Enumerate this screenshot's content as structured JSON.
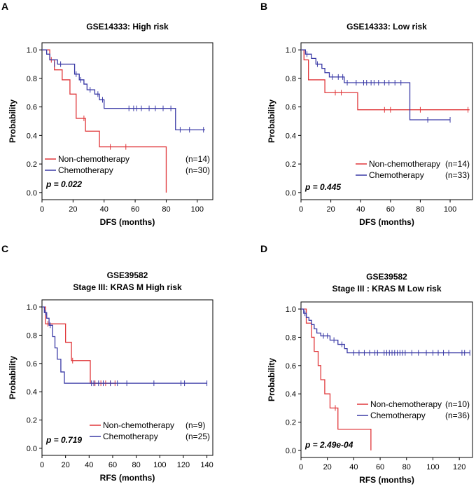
{
  "colors": {
    "non_chemo": "#e0373a",
    "chemo": "#3a3aa6"
  },
  "chart_data": [
    {
      "type": "line",
      "panel_label": "A",
      "title": "GSE14333: High risk",
      "title2": "",
      "xlabel": "DFS (months)",
      "ylabel": "Probability",
      "xticks": [
        0,
        20,
        40,
        60,
        80,
        100
      ],
      "yticks": [
        0.0,
        0.2,
        0.4,
        0.6,
        0.8,
        1.0
      ],
      "xlim": [
        0,
        110
      ],
      "ylim": [
        -0.05,
        1.05
      ],
      "p_value": "p = 0.022",
      "series": [
        {
          "name": "Non-chemotherapy",
          "n": "(n=14)",
          "color": "non_chemo",
          "steps": [
            [
              0,
              1.0
            ],
            [
              5,
              0.93
            ],
            [
              8,
              0.86
            ],
            [
              13,
              0.79
            ],
            [
              18,
              0.69
            ],
            [
              22,
              0.52
            ],
            [
              28,
              0.43
            ],
            [
              37,
              0.32
            ],
            [
              80,
              0.0
            ]
          ],
          "censor": [
            [
              6,
              0.93
            ],
            [
              27,
              0.52
            ],
            [
              44,
              0.32
            ],
            [
              54,
              0.32
            ]
          ],
          "end": 80
        },
        {
          "name": "Chemotherapy",
          "n": "(n=30)",
          "color": "chemo",
          "steps": [
            [
              0,
              1.0
            ],
            [
              3,
              0.97
            ],
            [
              5,
              0.93
            ],
            [
              10,
              0.9
            ],
            [
              21,
              0.83
            ],
            [
              24,
              0.79
            ],
            [
              27,
              0.76
            ],
            [
              29,
              0.72
            ],
            [
              34,
              0.69
            ],
            [
              37,
              0.65
            ],
            [
              40,
              0.59
            ],
            [
              86,
              0.44
            ]
          ],
          "censor": [
            [
              8,
              0.9
            ],
            [
              12,
              0.9
            ],
            [
              22,
              0.83
            ],
            [
              25,
              0.79
            ],
            [
              31,
              0.72
            ],
            [
              36,
              0.69
            ],
            [
              39,
              0.65
            ],
            [
              56,
              0.59
            ],
            [
              59,
              0.59
            ],
            [
              61,
              0.59
            ],
            [
              64,
              0.59
            ],
            [
              69,
              0.59
            ],
            [
              73,
              0.59
            ],
            [
              78,
              0.59
            ],
            [
              83,
              0.59
            ],
            [
              89,
              0.44
            ],
            [
              95,
              0.44
            ],
            [
              104,
              0.44
            ]
          ],
          "end": 105
        }
      ]
    },
    {
      "type": "line",
      "panel_label": "B",
      "title": "GSE14333: Low risk",
      "title2": "",
      "xlabel": "DFS (months)",
      "ylabel": "Probability",
      "xticks": [
        0,
        20,
        40,
        60,
        80,
        100
      ],
      "yticks": [
        0.0,
        0.2,
        0.4,
        0.6,
        0.8,
        1.0
      ],
      "xlim": [
        0,
        115
      ],
      "ylim": [
        -0.05,
        1.05
      ],
      "p_value": "p = 0.445",
      "series": [
        {
          "name": "Non-chemotherapy",
          "n": "(n=14)",
          "color": "non_chemo",
          "steps": [
            [
              0,
              1.0
            ],
            [
              2,
              0.93
            ],
            [
              5,
              0.79
            ],
            [
              16,
              0.7
            ],
            [
              38,
              0.58
            ]
          ],
          "censor": [
            [
              23,
              0.7
            ],
            [
              27,
              0.7
            ],
            [
              56,
              0.58
            ],
            [
              60,
              0.58
            ],
            [
              80,
              0.58
            ],
            [
              112,
              0.58
            ]
          ],
          "end": 113
        },
        {
          "name": "Chemotherapy",
          "n": "(n=33)",
          "color": "chemo",
          "steps": [
            [
              0,
              1.0
            ],
            [
              3,
              0.97
            ],
            [
              7,
              0.94
            ],
            [
              10,
              0.9
            ],
            [
              14,
              0.87
            ],
            [
              16,
              0.84
            ],
            [
              19,
              0.81
            ],
            [
              29,
              0.77
            ],
            [
              73,
              0.51
            ]
          ],
          "censor": [
            [
              4,
              0.97
            ],
            [
              11,
              0.9
            ],
            [
              21,
              0.81
            ],
            [
              25,
              0.81
            ],
            [
              28,
              0.81
            ],
            [
              31,
              0.77
            ],
            [
              37,
              0.77
            ],
            [
              42,
              0.77
            ],
            [
              44,
              0.77
            ],
            [
              47,
              0.77
            ],
            [
              49,
              0.77
            ],
            [
              52,
              0.77
            ],
            [
              56,
              0.77
            ],
            [
              59,
              0.77
            ],
            [
              63,
              0.77
            ],
            [
              67,
              0.77
            ],
            [
              85,
              0.51
            ],
            [
              100,
              0.51
            ]
          ],
          "end": 100
        }
      ]
    },
    {
      "type": "line",
      "panel_label": "C",
      "title": "GSE39582",
      "title2": "Stage III: KRAS M High risk",
      "xlabel": "RFS (months)",
      "ylabel": "Probability",
      "xticks": [
        0,
        20,
        40,
        60,
        80,
        100,
        120,
        140
      ],
      "yticks": [
        0.0,
        0.2,
        0.4,
        0.6,
        0.8,
        1.0
      ],
      "xlim": [
        0,
        145
      ],
      "ylim": [
        -0.05,
        1.05
      ],
      "p_value": "p = 0.719",
      "series": [
        {
          "name": "Non-chemotherapy",
          "n": "(n=9)",
          "color": "non_chemo",
          "steps": [
            [
              0,
              1.0
            ],
            [
              3,
              0.88
            ],
            [
              20,
              0.75
            ],
            [
              25,
              0.62
            ],
            [
              41,
              0.46
            ]
          ],
          "censor": [
            [
              5,
              0.88
            ],
            [
              26,
              0.62
            ],
            [
              45,
              0.46
            ],
            [
              50,
              0.46
            ],
            [
              54,
              0.46
            ],
            [
              58,
              0.46
            ],
            [
              62,
              0.46
            ]
          ],
          "end": 63
        },
        {
          "name": "Chemotherapy",
          "n": "(n=25)",
          "color": "chemo",
          "steps": [
            [
              0,
              1.0
            ],
            [
              2,
              0.96
            ],
            [
              4,
              0.92
            ],
            [
              6,
              0.87
            ],
            [
              9,
              0.79
            ],
            [
              11,
              0.71
            ],
            [
              13,
              0.63
            ],
            [
              16,
              0.54
            ],
            [
              19,
              0.46
            ]
          ],
          "censor": [
            [
              3,
              0.96
            ],
            [
              7,
              0.87
            ],
            [
              42,
              0.46
            ],
            [
              44,
              0.46
            ],
            [
              48,
              0.46
            ],
            [
              52,
              0.46
            ],
            [
              58,
              0.46
            ],
            [
              64,
              0.46
            ],
            [
              72,
              0.46
            ],
            [
              95,
              0.46
            ],
            [
              118,
              0.46
            ],
            [
              121,
              0.46
            ],
            [
              140,
              0.46
            ]
          ],
          "end": 140
        }
      ]
    },
    {
      "type": "line",
      "panel_label": "D",
      "title": "GSE39582",
      "title2": "Stage III : KRAS M Low risk",
      "xlabel": "RFS (months)",
      "ylabel": "Probability",
      "xticks": [
        0,
        20,
        40,
        60,
        80,
        100,
        120
      ],
      "yticks": [
        0.0,
        0.2,
        0.4,
        0.6,
        0.8,
        1.0
      ],
      "xlim": [
        0,
        130
      ],
      "ylim": [
        -0.05,
        1.05
      ],
      "p_value": "p = 2.49e-04",
      "series": [
        {
          "name": "Non-chemotherapy",
          "n": "(n=10)",
          "color": "non_chemo",
          "steps": [
            [
              0,
              1.0
            ],
            [
              4,
              0.9
            ],
            [
              8,
              0.8
            ],
            [
              10,
              0.7
            ],
            [
              13,
              0.6
            ],
            [
              15,
              0.5
            ],
            [
              18,
              0.4
            ],
            [
              22,
              0.3
            ],
            [
              28,
              0.15
            ],
            [
              53,
              0.0
            ]
          ],
          "censor": [
            [
              26,
              0.3
            ]
          ],
          "end": 53
        },
        {
          "name": "Chemotherapy",
          "n": "(n=36)",
          "color": "chemo",
          "steps": [
            [
              0,
              1.0
            ],
            [
              2,
              0.97
            ],
            [
              4,
              0.94
            ],
            [
              6,
              0.92
            ],
            [
              8,
              0.89
            ],
            [
              10,
              0.86
            ],
            [
              12,
              0.83
            ],
            [
              15,
              0.81
            ],
            [
              22,
              0.78
            ],
            [
              28,
              0.75
            ],
            [
              33,
              0.72
            ],
            [
              35,
              0.69
            ]
          ],
          "censor": [
            [
              3,
              0.97
            ],
            [
              17,
              0.81
            ],
            [
              20,
              0.81
            ],
            [
              25,
              0.78
            ],
            [
              31,
              0.75
            ],
            [
              40,
              0.69
            ],
            [
              44,
              0.69
            ],
            [
              48,
              0.69
            ],
            [
              52,
              0.69
            ],
            [
              56,
              0.69
            ],
            [
              58,
              0.69
            ],
            [
              63,
              0.69
            ],
            [
              65,
              0.69
            ],
            [
              67,
              0.69
            ],
            [
              69,
              0.69
            ],
            [
              71,
              0.69
            ],
            [
              73,
              0.69
            ],
            [
              75,
              0.69
            ],
            [
              77,
              0.69
            ],
            [
              79,
              0.69
            ],
            [
              84,
              0.69
            ],
            [
              89,
              0.69
            ],
            [
              95,
              0.69
            ],
            [
              100,
              0.69
            ],
            [
              104,
              0.69
            ],
            [
              108,
              0.69
            ],
            [
              112,
              0.69
            ],
            [
              122,
              0.69
            ],
            [
              124,
              0.69
            ],
            [
              128,
              0.69
            ]
          ],
          "end": 128
        }
      ]
    }
  ]
}
